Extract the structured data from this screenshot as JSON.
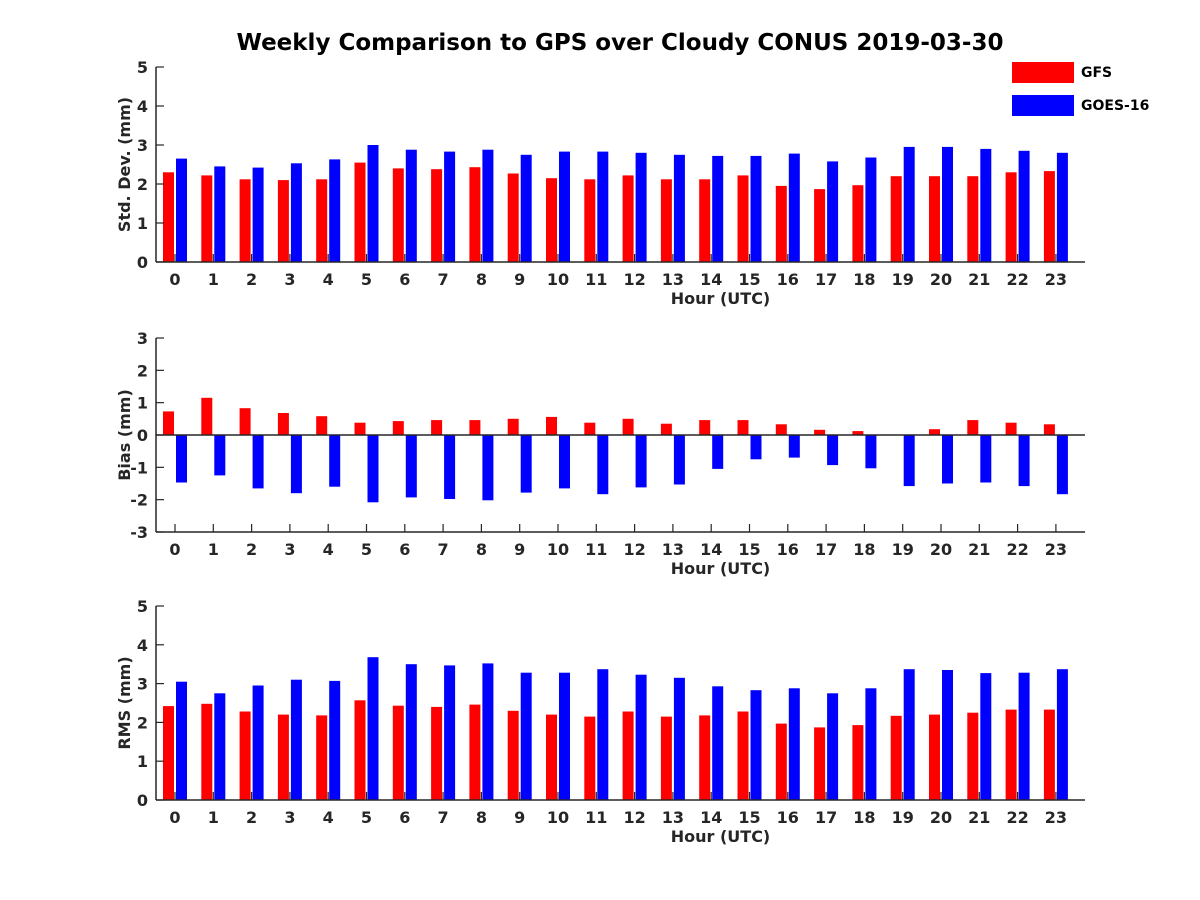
{
  "title": "Weekly Comparison to GPS over Cloudy CONUS 2019-03-30",
  "colors": {
    "GFS": "#ff0000",
    "GOES-16": "#0000ff",
    "axis": "#262626"
  },
  "legend": [
    {
      "name": "GFS",
      "color": "#ff0000"
    },
    {
      "name": "GOES-16",
      "color": "#0000ff"
    }
  ],
  "chart_data": [
    {
      "type": "bar",
      "xlabel": "Hour (UTC)",
      "ylabel": "Std. Dev. (mm)",
      "ylim": [
        0,
        5
      ],
      "yticks": [
        0,
        1,
        2,
        3,
        4,
        5
      ],
      "categories": [
        "0",
        "1",
        "2",
        "3",
        "4",
        "5",
        "6",
        "7",
        "8",
        "9",
        "10",
        "11",
        "12",
        "13",
        "14",
        "15",
        "16",
        "17",
        "18",
        "19",
        "20",
        "21",
        "22",
        "23"
      ],
      "series": [
        {
          "name": "GFS",
          "values": [
            2.3,
            2.22,
            2.12,
            2.1,
            2.12,
            2.55,
            2.4,
            2.38,
            2.43,
            2.27,
            2.15,
            2.12,
            2.22,
            2.12,
            2.12,
            2.22,
            1.95,
            1.87,
            1.97,
            2.2,
            2.2,
            2.2,
            2.3,
            2.33
          ]
        },
        {
          "name": "GOES-16",
          "values": [
            2.65,
            2.45,
            2.42,
            2.53,
            2.63,
            3.0,
            2.88,
            2.83,
            2.88,
            2.75,
            2.83,
            2.83,
            2.8,
            2.75,
            2.72,
            2.72,
            2.78,
            2.58,
            2.68,
            2.95,
            2.95,
            2.9,
            2.85,
            2.8
          ]
        }
      ]
    },
    {
      "type": "bar",
      "xlabel": "Hour (UTC)",
      "ylabel": "Bias (mm)",
      "ylim": [
        -3,
        3
      ],
      "yticks": [
        -3,
        -2,
        -1,
        0,
        1,
        2,
        3
      ],
      "categories": [
        "0",
        "1",
        "2",
        "3",
        "4",
        "5",
        "6",
        "7",
        "8",
        "9",
        "10",
        "11",
        "12",
        "13",
        "14",
        "15",
        "16",
        "17",
        "18",
        "19",
        "20",
        "21",
        "22",
        "23"
      ],
      "series": [
        {
          "name": "GFS",
          "values": [
            0.73,
            1.15,
            0.83,
            0.68,
            0.58,
            0.38,
            0.43,
            0.46,
            0.46,
            0.5,
            0.56,
            0.38,
            0.5,
            0.35,
            0.46,
            0.46,
            0.33,
            0.16,
            0.12,
            0.0,
            0.18,
            0.46,
            0.38,
            0.33
          ]
        },
        {
          "name": "GOES-16",
          "values": [
            -1.47,
            -1.25,
            -1.65,
            -1.8,
            -1.6,
            -2.08,
            -1.93,
            -1.98,
            -2.02,
            -1.78,
            -1.65,
            -1.83,
            -1.62,
            -1.53,
            -1.05,
            -0.75,
            -0.7,
            -0.93,
            -1.03,
            -1.58,
            -1.5,
            -1.47,
            -1.58,
            -1.83
          ]
        }
      ]
    },
    {
      "type": "bar",
      "xlabel": "Hour (UTC)",
      "ylabel": "RMS (mm)",
      "ylim": [
        0,
        5
      ],
      "yticks": [
        0,
        1,
        2,
        3,
        4,
        5
      ],
      "categories": [
        "0",
        "1",
        "2",
        "3",
        "4",
        "5",
        "6",
        "7",
        "8",
        "9",
        "10",
        "11",
        "12",
        "13",
        "14",
        "15",
        "16",
        "17",
        "18",
        "19",
        "20",
        "21",
        "22",
        "23"
      ],
      "series": [
        {
          "name": "GFS",
          "values": [
            2.42,
            2.48,
            2.28,
            2.2,
            2.18,
            2.57,
            2.43,
            2.4,
            2.46,
            2.3,
            2.2,
            2.15,
            2.28,
            2.15,
            2.18,
            2.28,
            1.97,
            1.87,
            1.93,
            2.17,
            2.2,
            2.25,
            2.33,
            2.33
          ]
        },
        {
          "name": "GOES-16",
          "values": [
            3.05,
            2.75,
            2.95,
            3.1,
            3.07,
            3.68,
            3.5,
            3.47,
            3.52,
            3.28,
            3.28,
            3.37,
            3.23,
            3.15,
            2.93,
            2.83,
            2.88,
            2.75,
            2.88,
            3.37,
            3.35,
            3.27,
            3.28,
            3.37
          ]
        }
      ]
    }
  ]
}
